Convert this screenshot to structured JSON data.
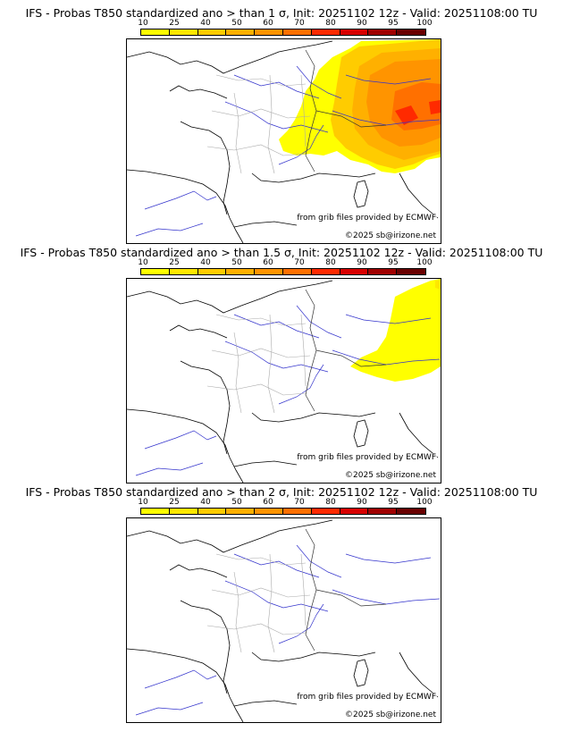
{
  "colorbar": {
    "ticks": [
      "10",
      "25",
      "40",
      "50",
      "60",
      "70",
      "80",
      "90",
      "95",
      "100"
    ],
    "colors": [
      "#ffff00",
      "#ffe800",
      "#ffcc00",
      "#ffb000",
      "#ff9400",
      "#ff7000",
      "#ff2a00",
      "#d80000",
      "#a00000",
      "#6a0000"
    ]
  },
  "credits": {
    "source": "from grib files provided by ECMWF",
    "copyright": "©2025 sb@irizone.net"
  },
  "panels": [
    {
      "title": "IFS - Probas T850  standardized ano > than 1 σ, Init: 20251102 12z - Valid: 20251108:00 TU",
      "sigma": 1
    },
    {
      "title": "IFS - Probas T850  standardized ano > than 1.5 σ, Init: 20251102 12z - Valid: 20251108:00 TU",
      "sigma": 1.5
    },
    {
      "title": "IFS - Probas T850  standardized ano > than 2 σ, Init: 20251102 12z - Valid: 20251108:00 TU",
      "sigma": 2
    }
  ]
}
